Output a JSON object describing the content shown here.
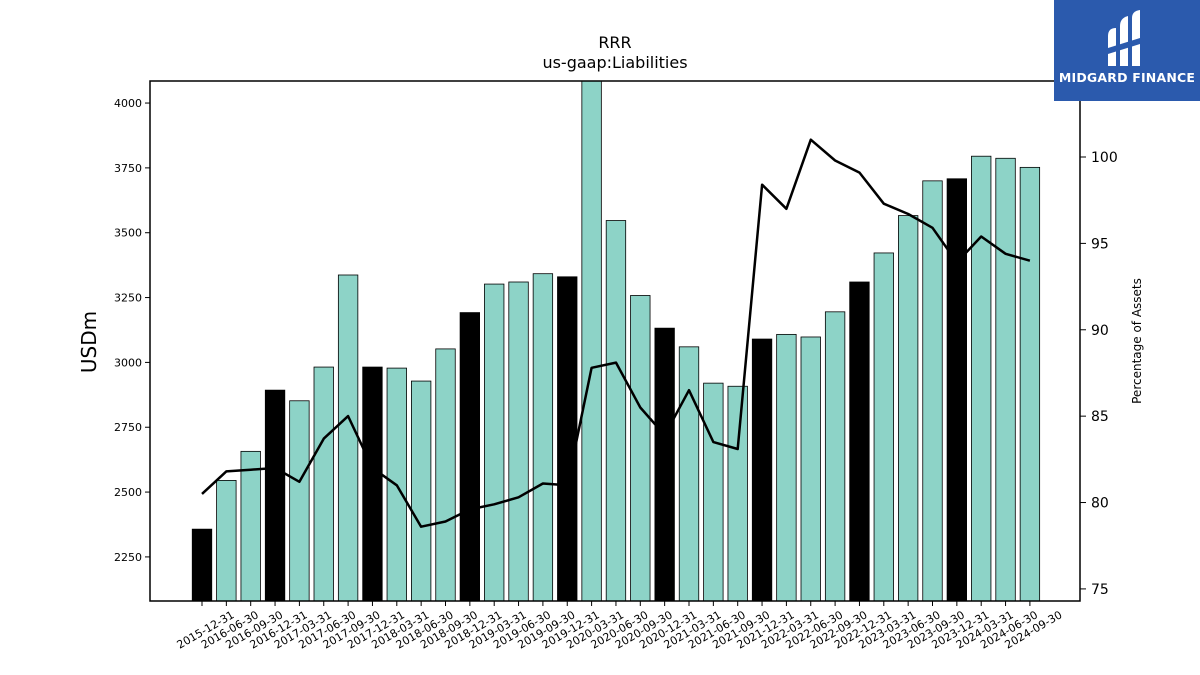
{
  "chart_data": {
    "type": "bar",
    "title": "RRR",
    "subtitle": "us-gaap:Liabilities",
    "ylabel": "USDm",
    "y2label": "Percentage of Assets",
    "ylim": [
      2080,
      4085
    ],
    "y2lim": [
      74.3,
      104.4
    ],
    "yticks": [
      2250,
      2500,
      2750,
      3000,
      3250,
      3500,
      3750,
      4000
    ],
    "y2ticks": [
      75,
      80,
      85,
      90,
      95,
      100
    ],
    "grid": false,
    "categories": [
      "2015-12-31",
      "2016-06-30",
      "2016-09-30",
      "2016-12-31",
      "2017-03-31",
      "2017-06-30",
      "2017-09-30",
      "2017-12-31",
      "2018-03-31",
      "2018-06-30",
      "2018-09-30",
      "2018-12-31",
      "2019-03-31",
      "2019-06-30",
      "2019-09-30",
      "2019-12-31",
      "2020-03-31",
      "2020-06-30",
      "2020-09-30",
      "2020-12-31",
      "2021-03-31",
      "2021-06-30",
      "2021-09-30",
      "2021-12-31",
      "2022-03-31",
      "2022-06-30",
      "2022-09-30",
      "2022-12-31",
      "2023-03-31",
      "2023-06-30",
      "2023-09-30",
      "2023-12-31",
      "2024-03-31",
      "2024-06-30",
      "2024-09-30"
    ],
    "series": [
      {
        "kind": "bar",
        "values": [
          2357,
          2545,
          2657,
          2893,
          2852,
          2982,
          3337,
          2982,
          2978,
          2928,
          3052,
          3192,
          3302,
          3310,
          3342,
          3330,
          4087,
          3547,
          3258,
          3132,
          3060,
          2920,
          2908,
          3090,
          3108,
          3098,
          3195,
          3310,
          3422,
          3566,
          3700,
          3708,
          3795,
          3787,
          3752
        ],
        "annual": [
          true,
          false,
          false,
          true,
          false,
          false,
          false,
          true,
          false,
          false,
          false,
          true,
          false,
          false,
          false,
          true,
          false,
          false,
          false,
          true,
          false,
          false,
          false,
          true,
          false,
          false,
          false,
          true,
          false,
          false,
          false,
          true,
          false,
          false,
          false
        ]
      },
      {
        "kind": "line",
        "axis": "y2",
        "values": [
          80.5,
          81.8,
          81.9,
          82.0,
          81.2,
          83.7,
          85.0,
          82.0,
          81.0,
          78.6,
          78.9,
          79.6,
          79.9,
          80.3,
          81.1,
          81.0,
          87.8,
          88.1,
          85.5,
          83.9,
          86.5,
          83.5,
          83.1,
          98.4,
          97.0,
          101.0,
          99.8,
          99.1,
          97.3,
          96.7,
          95.9,
          93.9,
          95.4,
          94.4,
          94.0
        ]
      }
    ],
    "colors": {
      "bar": "#8dd3c7",
      "annual_bar": "#000000",
      "line": "#000000"
    }
  },
  "logo": {
    "text": "MIDGARD FINANCE"
  }
}
